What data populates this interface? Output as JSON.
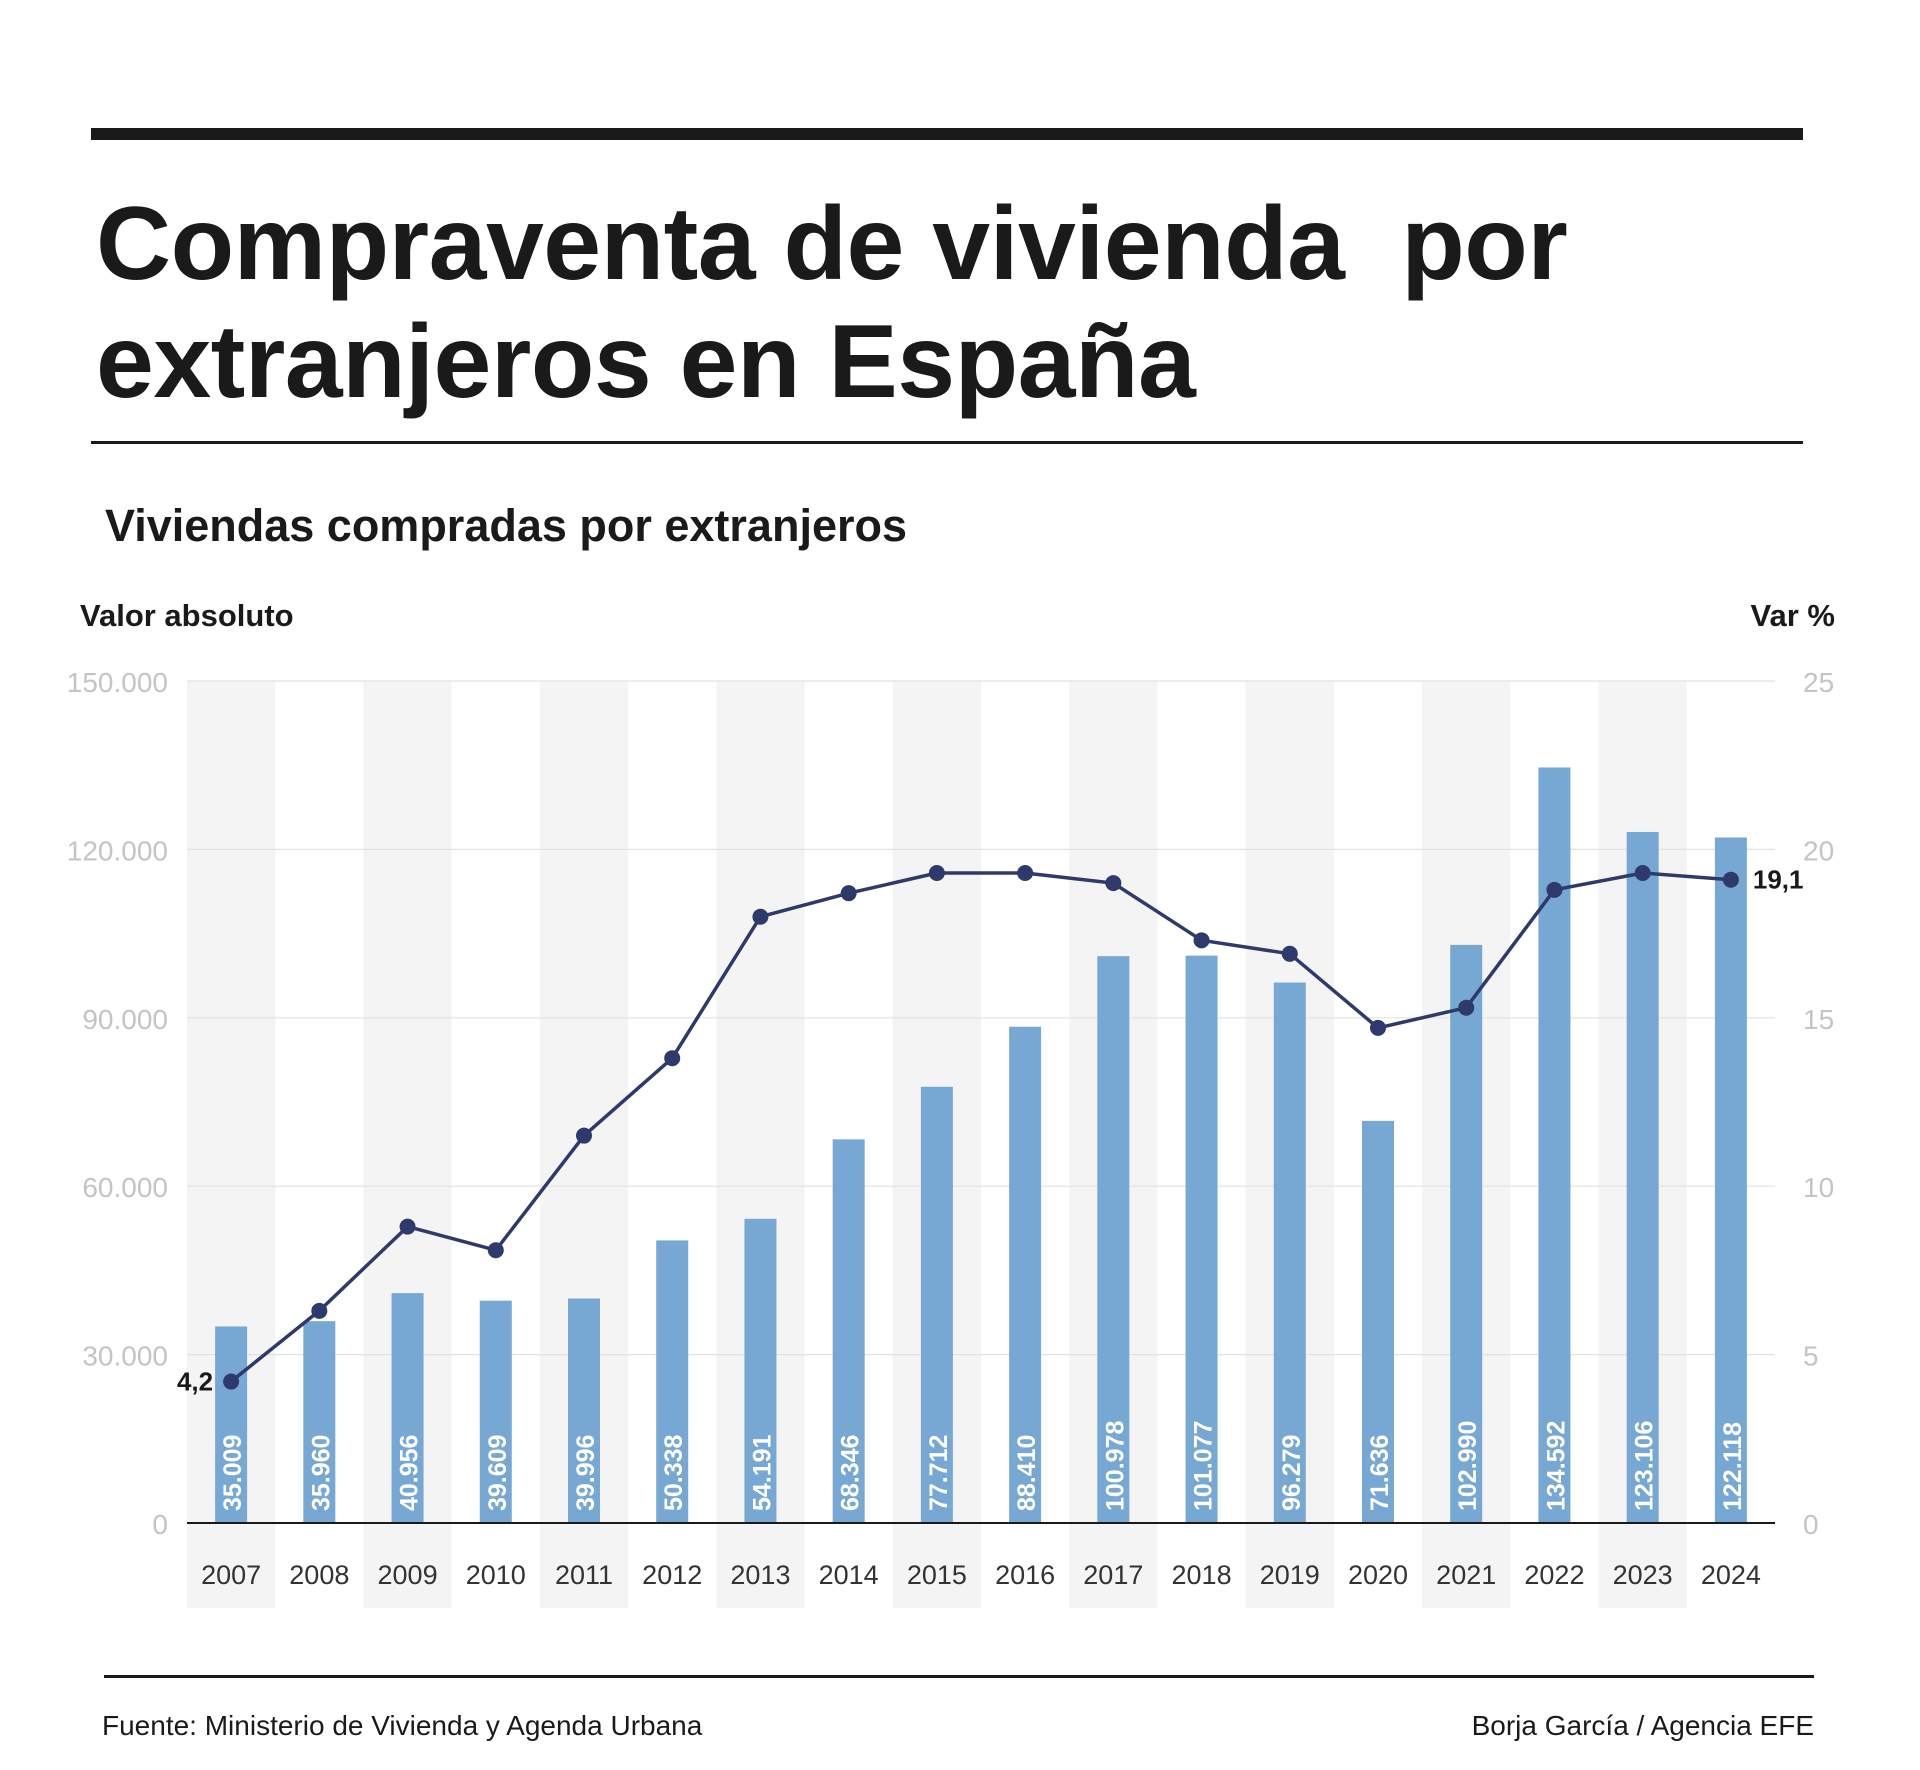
{
  "header": {
    "title": "Compraventa de vivienda  por extranjeros en España",
    "subtitle": "Viviendas compradas por extranjeros"
  },
  "axes": {
    "left_title": "Valor absoluto",
    "right_title": "Var %"
  },
  "footer": {
    "source": "Fuente: Ministerio de Vivienda y Agenda Urbana",
    "credit": "Borja García / Agencia EFE"
  },
  "colors": {
    "bar": "#76a8d3",
    "line": "#2e3a6b",
    "band": "#f4f4f4",
    "grid": "#e2e2e2",
    "tick": "#c4c4c4"
  },
  "chart_data": {
    "type": "bar",
    "categories": [
      "2007",
      "2008",
      "2009",
      "2010",
      "2011",
      "2012",
      "2013",
      "2014",
      "2015",
      "2016",
      "2017",
      "2018",
      "2019",
      "2020",
      "2021",
      "2022",
      "2023",
      "2024"
    ],
    "series": [
      {
        "name": "Viviendas compradas por extranjeros",
        "axis": "left",
        "type": "bar",
        "values": [
          35009,
          35960,
          40956,
          39609,
          39996,
          50338,
          54191,
          68346,
          77712,
          88410,
          100978,
          101077,
          96279,
          71636,
          102990,
          134592,
          123106,
          122118
        ],
        "labels": [
          "35.009",
          "35.960",
          "40.956",
          "39.609",
          "39.996",
          "50.338",
          "54.191",
          "68.346",
          "77.712",
          "88.410",
          "100.978",
          "101.077",
          "96.279",
          "71.636",
          "102.990",
          "134.592",
          "123.106",
          "122.118"
        ]
      },
      {
        "name": "Var %",
        "axis": "right",
        "type": "line",
        "values": [
          4.2,
          6.3,
          8.8,
          8.1,
          11.5,
          13.8,
          18.0,
          18.7,
          19.3,
          19.3,
          19.0,
          17.3,
          16.9,
          14.7,
          15.3,
          18.8,
          19.3,
          19.1
        ],
        "point_labels": [
          {
            "index": 0,
            "text": "4,2"
          },
          {
            "index": 17,
            "text": "19,1"
          }
        ]
      }
    ],
    "ylim_left": [
      0,
      150000
    ],
    "yticks_left": [
      "0",
      "30.000",
      "60.000",
      "90.000",
      "120.000",
      "150.000"
    ],
    "ylim_right": [
      0,
      25
    ],
    "yticks_right": [
      "0",
      "5",
      "10",
      "15",
      "20",
      "25"
    ],
    "xlabel": "",
    "ylabel_left": "Valor absoluto",
    "ylabel_right": "Var %",
    "grid": true
  }
}
